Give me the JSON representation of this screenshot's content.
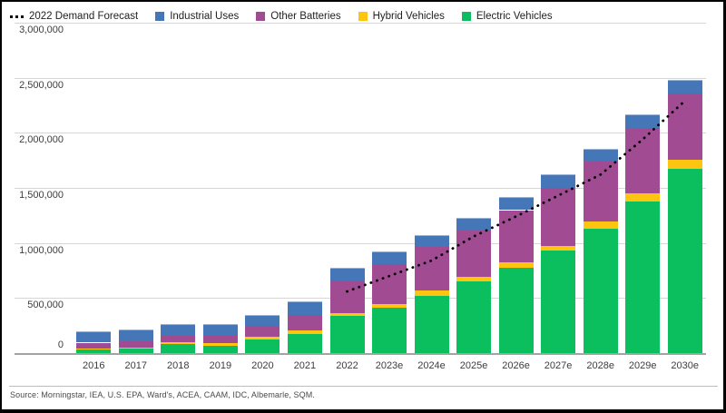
{
  "frame": {
    "background": "#ffffff",
    "border_color": "#000000"
  },
  "legend": {
    "items": [
      {
        "label": "2022 Demand Forecast",
        "type": "dotted-line",
        "color": "#000000",
        "key": "2022-demand-forecast"
      },
      {
        "label": "Industrial Uses",
        "type": "square",
        "color": "#4577b8",
        "key": "industrial-uses"
      },
      {
        "label": "Other Batteries",
        "type": "square",
        "color": "#a14b92",
        "key": "other-batteries"
      },
      {
        "label": "Hybrid Vehicles",
        "type": "square",
        "color": "#fdc50f",
        "key": "hybrid-vehicles"
      },
      {
        "label": "Electric Vehicles",
        "type": "square",
        "color": "#0bbf5e",
        "key": "electric-vehicles"
      }
    ]
  },
  "chart_data": {
    "type": "bar",
    "subtype": "stacked-bars-with-dotted-forecast-line",
    "title": "",
    "xlabel": "",
    "ylabel": "",
    "ylim": [
      0,
      3000000
    ],
    "grid": "horizontal",
    "grid_color": "#d6d6d6",
    "axis_color": "#a3a3a3",
    "tick_text_color": "#3d3d3d",
    "categories": [
      "2016",
      "2017",
      "2018",
      "2019",
      "2020",
      "2021",
      "2022",
      "2023e",
      "2024e",
      "2025e",
      "2026e",
      "2027e",
      "2028e",
      "2029e",
      "2030e"
    ],
    "series": [
      {
        "name": "Electric Vehicles",
        "key": "electric-vehicles",
        "color": "#0bbf5e",
        "values": [
          35000,
          40000,
          80000,
          70000,
          123000,
          175000,
          336000,
          410000,
          520000,
          648000,
          774000,
          929000,
          1126000,
          1375000,
          1675000
        ]
      },
      {
        "name": "Hybrid Vehicles",
        "key": "hybrid-vehicles",
        "color": "#fdc50f",
        "values": [
          10000,
          11000,
          18000,
          21000,
          28000,
          30000,
          28000,
          36000,
          46000,
          41000,
          51000,
          46000,
          70000,
          73000,
          80000
        ]
      },
      {
        "name": "Other Batteries",
        "key": "other-batteries",
        "color": "#a14b92",
        "values": [
          50000,
          55000,
          55000,
          77000,
          95000,
          145000,
          300000,
          360000,
          399000,
          426000,
          473000,
          528000,
          545000,
          593000,
          605000
        ]
      },
      {
        "name": "Industrial Uses",
        "key": "industrial-uses",
        "color": "#4577b8",
        "values": [
          100000,
          110000,
          110000,
          100000,
          102000,
          120000,
          115000,
          118000,
          106000,
          115000,
          123000,
          123000,
          115000,
          123000,
          125000
        ]
      }
    ],
    "forecast_line": {
      "name": "2022 Demand Forecast",
      "color": "#000000",
      "start_category": "2022",
      "values": [
        560000,
        700000,
        840000,
        1060000,
        1240000,
        1430000,
        1620000,
        1940000,
        2290000
      ]
    },
    "yticks": [
      {
        "value": 0,
        "label": "0"
      },
      {
        "value": 500000,
        "label": "500,000"
      },
      {
        "value": 1000000,
        "label": "1,000,000"
      },
      {
        "value": 1500000,
        "label": "1,500,000"
      },
      {
        "value": 2000000,
        "label": "2,000,000"
      },
      {
        "value": 2500000,
        "label": "2,500,000"
      },
      {
        "value": 3000000,
        "label": "3,000,000"
      }
    ]
  },
  "footer": {
    "source": "Source: Morningstar, IEA, U.S. EPA, Ward's, ACEA, CAAM, IDC, Albemarle, SQM."
  }
}
